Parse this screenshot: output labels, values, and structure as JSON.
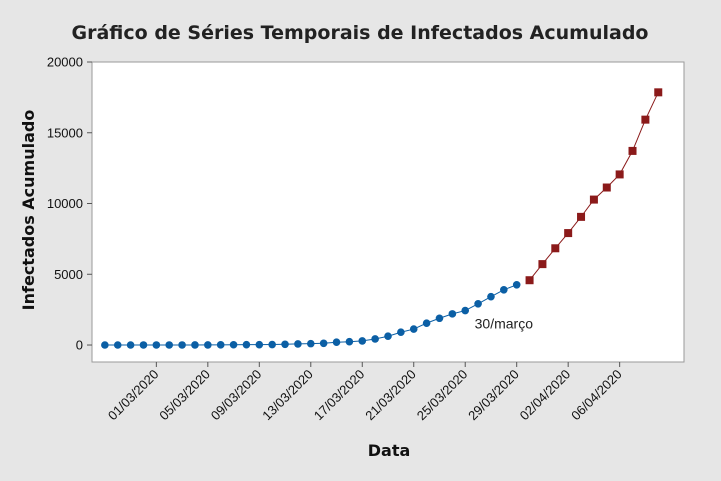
{
  "chart_data": {
    "type": "line",
    "title": "Gráfico de Séries Temporais de Infectados Acumulado",
    "xlabel": "Data",
    "ylabel": "Infectados Acumulado",
    "ylim": [
      -1200,
      20000
    ],
    "yticks": [
      0,
      5000,
      10000,
      15000,
      20000
    ],
    "ytick_labels": [
      "0",
      "5000",
      "10000",
      "15000",
      "20000"
    ],
    "xlim": [
      "2020-02-25",
      "2020-04-11"
    ],
    "xticks": [
      "2020-03-01",
      "2020-03-05",
      "2020-03-09",
      "2020-03-13",
      "2020-03-17",
      "2020-03-21",
      "2020-03-25",
      "2020-03-29",
      "2020-04-02",
      "2020-04-06"
    ],
    "xtick_labels": [
      "01/03/2020",
      "05/03/2020",
      "09/03/2020",
      "13/03/2020",
      "17/03/2020",
      "21/03/2020",
      "25/03/2020",
      "29/03/2020",
      "02/04/2020",
      "06/04/2020"
    ],
    "grid": false,
    "series": [
      {
        "color": "#0b5fa5",
        "marker": "circle",
        "points": [
          [
            "2020-02-26",
            1
          ],
          [
            "2020-02-27",
            1
          ],
          [
            "2020-02-28",
            1
          ],
          [
            "2020-02-29",
            2
          ],
          [
            "2020-03-01",
            2
          ],
          [
            "2020-03-02",
            2
          ],
          [
            "2020-03-03",
            2
          ],
          [
            "2020-03-04",
            3
          ],
          [
            "2020-03-05",
            8
          ],
          [
            "2020-03-06",
            13
          ],
          [
            "2020-03-07",
            19
          ],
          [
            "2020-03-08",
            25
          ],
          [
            "2020-03-09",
            25
          ],
          [
            "2020-03-10",
            34
          ],
          [
            "2020-03-11",
            52
          ],
          [
            "2020-03-12",
            77
          ],
          [
            "2020-03-13",
            98
          ],
          [
            "2020-03-14",
            121
          ],
          [
            "2020-03-15",
            200
          ],
          [
            "2020-03-16",
            234
          ],
          [
            "2020-03-17",
            291
          ],
          [
            "2020-03-18",
            428
          ],
          [
            "2020-03-19",
            621
          ],
          [
            "2020-03-20",
            904
          ],
          [
            "2020-03-21",
            1128
          ],
          [
            "2020-03-22",
            1546
          ],
          [
            "2020-03-23",
            1891
          ],
          [
            "2020-03-24",
            2201
          ],
          [
            "2020-03-25",
            2433
          ],
          [
            "2020-03-26",
            2915
          ],
          [
            "2020-03-27",
            3417
          ],
          [
            "2020-03-28",
            3904
          ],
          [
            "2020-03-29",
            4256
          ]
        ]
      },
      {
        "color": "#8b1a1a",
        "marker": "square",
        "points": [
          [
            "2020-03-30",
            4579
          ],
          [
            "2020-03-31",
            5717
          ],
          [
            "2020-04-01",
            6836
          ],
          [
            "2020-04-02",
            7910
          ],
          [
            "2020-04-03",
            9056
          ],
          [
            "2020-04-04",
            10278
          ],
          [
            "2020-04-05",
            11130
          ],
          [
            "2020-04-06",
            12056
          ],
          [
            "2020-04-07",
            13717
          ],
          [
            "2020-04-08",
            15927
          ],
          [
            "2020-04-09",
            17857
          ]
        ]
      }
    ],
    "annotations": [
      {
        "text": "30/março",
        "x": "2020-03-28",
        "y": 1150
      }
    ]
  }
}
